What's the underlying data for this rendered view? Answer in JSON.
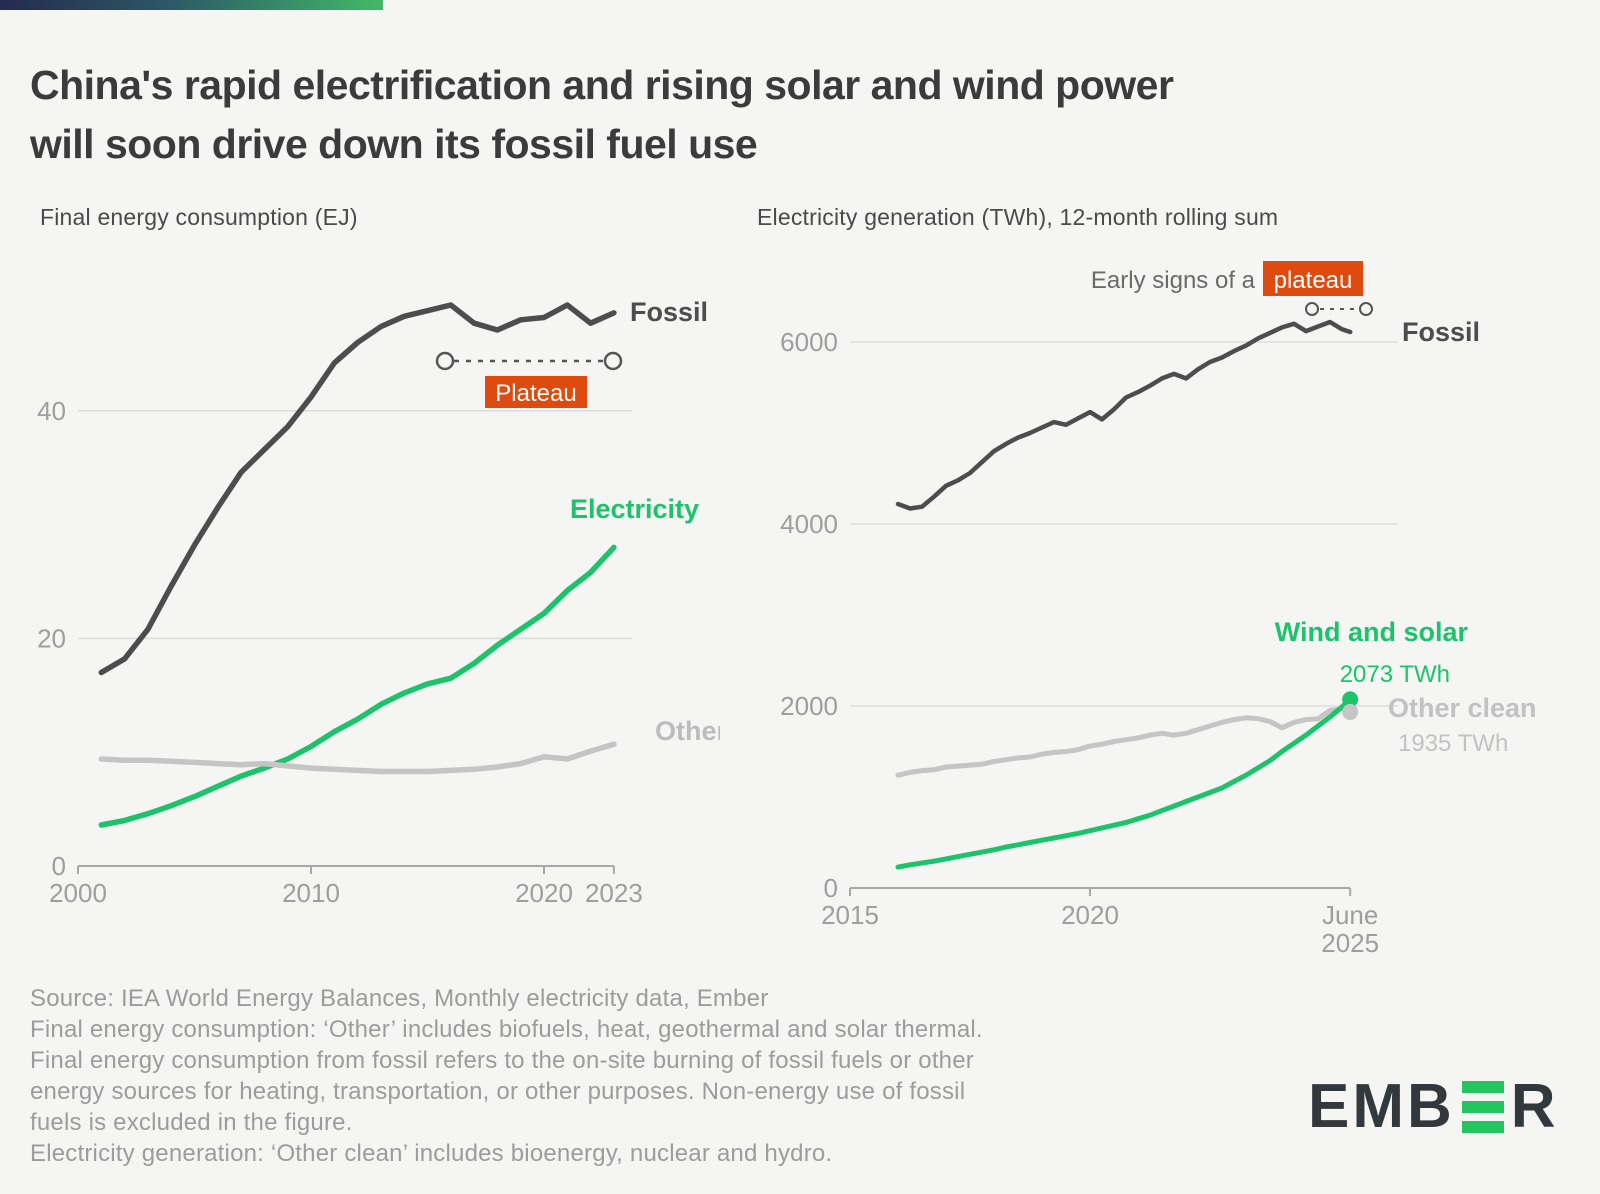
{
  "page": {
    "background": "#f5f5f4",
    "accent_bar_colors": {
      "from": "#252a4e",
      "to": "#43b968"
    }
  },
  "title": {
    "lines": [
      "China's rapid electrification and rising solar and wind power",
      "will soon drive down its fossil fuel use"
    ]
  },
  "colors": {
    "fossil": "#4d4d4d",
    "green": "#1cc36b",
    "light_gray": "#c5c5c5",
    "orange": "#df4a0e",
    "gridline": "#dddddc",
    "axis": "#a8a8a8",
    "tick_text": "#9e9e9e",
    "annotation_text": "#6a6a6a"
  },
  "chart_data": [
    {
      "type": "line",
      "title": "Final energy consumption (EJ)",
      "xlabel": "",
      "ylabel": "EJ",
      "ylim": [
        0,
        52
      ],
      "xlim": [
        2000,
        2023
      ],
      "grid": "horizontal",
      "legend_position": "inline-end-labels",
      "x": [
        2001,
        2002,
        2003,
        2004,
        2005,
        2006,
        2007,
        2008,
        2009,
        2010,
        2011,
        2012,
        2013,
        2014,
        2015,
        2016,
        2017,
        2018,
        2019,
        2020,
        2021,
        2022,
        2023
      ],
      "series": [
        {
          "name": "Fossil",
          "color": "#4d4d4d",
          "values": [
            17.0,
            18.2,
            20.8,
            24.6,
            28.2,
            31.5,
            34.6,
            36.6,
            38.6,
            41.2,
            44.2,
            46.0,
            47.4,
            48.3,
            48.8,
            49.3,
            47.7,
            47.1,
            48.0,
            48.2,
            49.3,
            47.7,
            48.6
          ]
        },
        {
          "name": "Electricity",
          "color": "#1cc36b",
          "values": [
            3.6,
            4.0,
            4.6,
            5.3,
            6.1,
            7.0,
            7.9,
            8.6,
            9.4,
            10.5,
            11.8,
            12.9,
            14.2,
            15.2,
            16.0,
            16.5,
            17.8,
            19.4,
            20.8,
            22.2,
            24.2,
            25.8,
            28.0
          ]
        },
        {
          "name": "Other",
          "color": "#c5c5c5",
          "values": [
            9.4,
            9.3,
            9.3,
            9.2,
            9.1,
            9.0,
            8.9,
            9.0,
            8.8,
            8.6,
            8.5,
            8.4,
            8.3,
            8.3,
            8.3,
            8.4,
            8.5,
            8.7,
            9.0,
            9.6,
            9.4,
            10.1,
            10.7
          ]
        }
      ],
      "yticks": [
        {
          "value": 0,
          "label": "0"
        },
        {
          "value": 20,
          "label": "20"
        },
        {
          "value": 40,
          "label": "40"
        }
      ],
      "xticks": [
        {
          "value": 2000,
          "label": "2000"
        },
        {
          "value": 2010,
          "label": "2010"
        },
        {
          "value": 2020,
          "label": "2020"
        },
        {
          "value": 2023,
          "label": "2023"
        }
      ],
      "annotation": {
        "label": "Plateau",
        "box_color": "#df4a0e",
        "text_color": "#ffffff",
        "span_years": [
          2016,
          2023
        ],
        "at_value": 44.3
      }
    },
    {
      "type": "line",
      "title": "Electricity generation (TWh), 12-month rolling sum",
      "xlabel": "",
      "ylabel": "TWh",
      "ylim": [
        0,
        6600
      ],
      "xlim": [
        2015,
        2025.45
      ],
      "grid": "horizontal",
      "legend_position": "inline-end-labels",
      "x": [
        2016.0,
        2016.25,
        2016.5,
        2016.75,
        2017.0,
        2017.25,
        2017.5,
        2017.75,
        2018.0,
        2018.25,
        2018.5,
        2018.75,
        2019.0,
        2019.25,
        2019.5,
        2019.75,
        2020.0,
        2020.25,
        2020.5,
        2020.75,
        2021.0,
        2021.25,
        2021.5,
        2021.75,
        2022.0,
        2022.25,
        2022.5,
        2022.75,
        2023.0,
        2023.25,
        2023.5,
        2023.75,
        2024.0,
        2024.25,
        2024.5,
        2024.75,
        2025.0,
        2025.25,
        2025.42
      ],
      "series": [
        {
          "name": "Fossil",
          "color": "#4d4d4d",
          "values": [
            4220,
            4170,
            4190,
            4300,
            4420,
            4480,
            4560,
            4680,
            4800,
            4880,
            4950,
            5000,
            5060,
            5120,
            5090,
            5160,
            5230,
            5150,
            5260,
            5390,
            5450,
            5520,
            5600,
            5650,
            5600,
            5700,
            5780,
            5830,
            5900,
            5960,
            6040,
            6100,
            6160,
            6200,
            6120,
            6170,
            6220,
            6140,
            6110
          ]
        },
        {
          "name": "Wind and solar",
          "color": "#1cc36b",
          "end_value_label": "2073 TWh",
          "end_value": 2073,
          "end_dot": true,
          "values": [
            230,
            255,
            275,
            295,
            320,
            345,
            370,
            395,
            420,
            450,
            475,
            500,
            525,
            550,
            575,
            600,
            630,
            660,
            690,
            720,
            760,
            800,
            850,
            900,
            950,
            1000,
            1050,
            1100,
            1170,
            1240,
            1320,
            1400,
            1500,
            1590,
            1680,
            1780,
            1880,
            1990,
            2073
          ]
        },
        {
          "name": "Other clean",
          "color": "#c5c5c5",
          "end_value_label": "1935 TWh",
          "end_value": 1935,
          "end_dot": true,
          "values": [
            1240,
            1270,
            1290,
            1300,
            1330,
            1340,
            1350,
            1360,
            1390,
            1410,
            1430,
            1440,
            1470,
            1490,
            1500,
            1520,
            1560,
            1580,
            1610,
            1630,
            1650,
            1680,
            1700,
            1680,
            1700,
            1740,
            1780,
            1820,
            1850,
            1870,
            1860,
            1830,
            1760,
            1820,
            1850,
            1860,
            1950,
            1970,
            1935
          ]
        }
      ],
      "yticks": [
        {
          "value": 0,
          "label": "0"
        },
        {
          "value": 2000,
          "label": "2000"
        },
        {
          "value": 4000,
          "label": "4000"
        },
        {
          "value": 6000,
          "label": "6000"
        }
      ],
      "xticks": [
        {
          "value": 2015,
          "label": "2015"
        },
        {
          "value": 2020,
          "label": "2020"
        },
        {
          "value": 2025.42,
          "label": "June",
          "label2": "2025"
        }
      ],
      "annotation": {
        "prefix": "Early signs of a",
        "label": "plateau",
        "box_color": "#df4a0e",
        "text_color": "#ffffff"
      }
    }
  ],
  "footer": {
    "lines": [
      "Source: IEA World Energy Balances, Monthly electricity data, Ember",
      "Final energy consumption: ‘Other’ includes biofuels, heat, geothermal and solar thermal.",
      "Final energy consumption from fossil refers to the on-site burning of fossil fuels or other",
      "energy sources for heating, transportation, or other purposes. Non-energy use of fossil",
      "fuels is excluded in the figure.",
      "Electricity generation: ‘Other clean’ includes bioenergy, nuclear and hydro."
    ]
  },
  "logo": {
    "text": "EMBER",
    "part1": "EMB",
    "part2": "R",
    "bar_color": "#22c55e",
    "text_color": "#33383d"
  }
}
